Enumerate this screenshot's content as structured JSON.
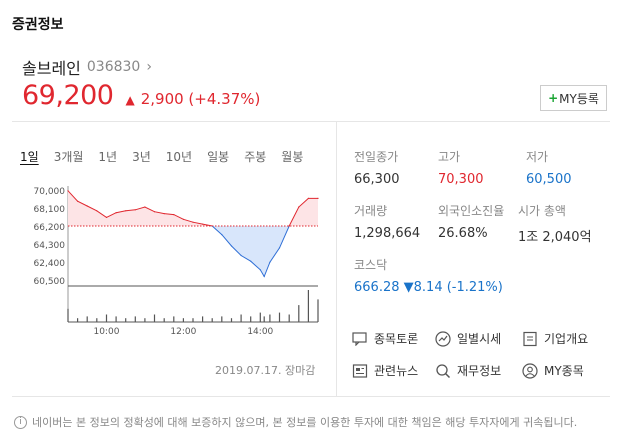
{
  "section": {
    "title": "증권정보"
  },
  "stock": {
    "name": "솔브레인",
    "code": "036830",
    "price": "69,200",
    "change": "2,900 (+4.37%)",
    "my_button": "MY등록"
  },
  "tabs": [
    {
      "label": "1일",
      "active": true
    },
    {
      "label": "3개월"
    },
    {
      "label": "1년"
    },
    {
      "label": "3년"
    },
    {
      "label": "10년"
    },
    {
      "label": "일봉"
    },
    {
      "label": "주봉"
    },
    {
      "label": "월봉"
    }
  ],
  "chart_data": {
    "type": "line",
    "reference_value": 66300,
    "ylim": [
      60000,
      70500
    ],
    "y_ticks": [
      "70,000",
      "68,100",
      "66,200",
      "64,300",
      "62,400",
      "60,500"
    ],
    "x_ticks": [
      "10:00",
      "12:00",
      "14:00"
    ],
    "x_hours": [
      9.0,
      9.25,
      9.5,
      9.75,
      10.0,
      10.25,
      10.5,
      10.75,
      11.0,
      11.25,
      11.5,
      11.75,
      12.0,
      12.25,
      12.5,
      12.75,
      13.0,
      13.25,
      13.5,
      13.75,
      14.0,
      14.1,
      14.25,
      14.5,
      14.75,
      15.0,
      15.25,
      15.5
    ],
    "values": [
      70000,
      68900,
      68400,
      67900,
      67200,
      67700,
      67900,
      68000,
      68300,
      67800,
      67600,
      67500,
      67000,
      66700,
      66500,
      66300,
      65400,
      64200,
      63200,
      62600,
      61700,
      61000,
      62500,
      64000,
      66300,
      68300,
      69200,
      69200
    ],
    "volume": [
      7,
      2,
      3,
      2,
      4,
      3,
      2,
      3,
      2,
      4,
      2,
      3,
      2,
      2,
      3,
      2,
      3,
      2,
      4,
      3,
      5,
      3,
      4,
      5,
      4,
      9,
      17,
      12
    ],
    "up_color": "#e0272f",
    "down_color": "#2f6fd6",
    "up_fill": "#fde4e6",
    "down_fill": "#d8e6fb"
  },
  "date_note": "2019.07.17. 장마감",
  "stats": {
    "prev_close": {
      "label": "전일종가",
      "value": "66,300"
    },
    "high": {
      "label": "고가",
      "value": "70,300"
    },
    "low": {
      "label": "저가",
      "value": "60,500"
    },
    "volume": {
      "label": "거래량",
      "value": "1,298,664"
    },
    "foreign": {
      "label": "외국인소진율",
      "value": "26.68%"
    },
    "market_cap": {
      "label": "시가 총액",
      "value": "1조 2,040억"
    },
    "index": {
      "label": "코스닥",
      "value": "666.28",
      "change": "▼8.14 (-1.21%)"
    }
  },
  "links": {
    "discussion": "종목토론",
    "daily": "일별시세",
    "company": "기업개요",
    "news": "관련뉴스",
    "finance": "재무정보",
    "my": "MY종목"
  },
  "footer": {
    "icon": "i",
    "text": "네이버는 본 정보의 정확성에 대해 보증하지 않으며, 본 정보를 이용한 투자에 대한 책임은 해당 투자자에게 귀속됩니다."
  }
}
